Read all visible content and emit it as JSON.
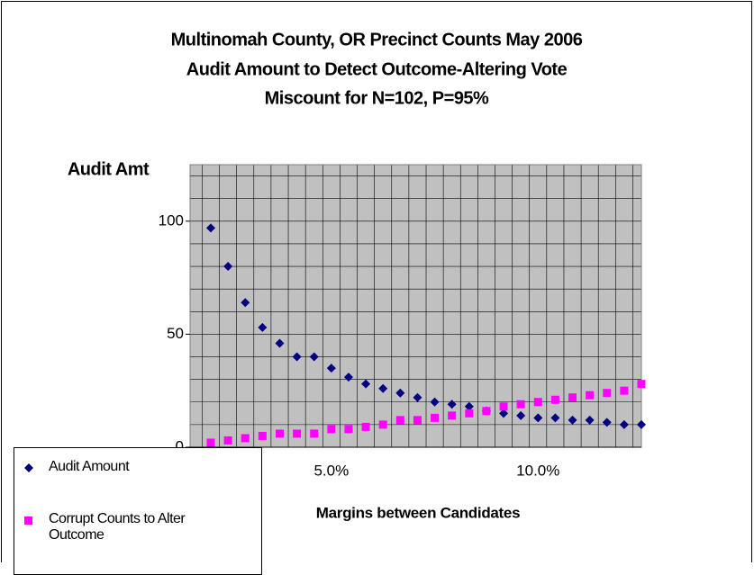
{
  "chart_data": {
    "type": "scatter",
    "title": [
      "Multinomah County, OR Precinct Counts May 2006",
      "Audit Amount to Detect Outcome-Altering Vote",
      "Miscount for N=102, P=95%"
    ],
    "y_label": "Audit Amt",
    "x_label": "Margins between Candidates",
    "categories": [
      null,
      null,
      null,
      null,
      null,
      null,
      null,
      "5.0%",
      null,
      null,
      null,
      null,
      null,
      null,
      null,
      null,
      null,
      null,
      null,
      "10.0%",
      null,
      null,
      null,
      null,
      null,
      null
    ],
    "series": [
      {
        "name": "Audit Amount",
        "color": "#000080",
        "marker": "diamond",
        "values": [
          97,
          80,
          64,
          53,
          46,
          40,
          40,
          35,
          31,
          28,
          26,
          24,
          22,
          20,
          19,
          18,
          16,
          15,
          14,
          13,
          13,
          12,
          12,
          11,
          10,
          10
        ]
      },
      {
        "name": "Corrupt Counts to Alter Outcome",
        "color": "#ff00ff",
        "marker": "square",
        "values": [
          2,
          3,
          4,
          5,
          6,
          6,
          6,
          8,
          8,
          9,
          10,
          12,
          12,
          13,
          14,
          15,
          16,
          18,
          19,
          20,
          21,
          22,
          23,
          24,
          25,
          28
        ]
      }
    ],
    "ylim": [
      0,
      125
    ],
    "yticks": [
      0,
      50,
      100
    ],
    "y_gridlines": [
      10,
      20,
      30,
      40,
      50,
      60,
      70,
      80,
      90,
      100,
      110,
      120
    ],
    "grid": true,
    "legend": "bottom-left"
  }
}
